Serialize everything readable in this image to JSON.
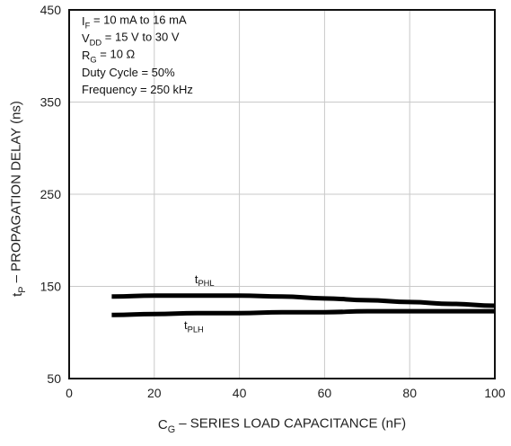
{
  "chart_data": {
    "type": "line",
    "xlabel": {
      "main": "C",
      "sub": "G",
      "rest": " – SERIES LOAD CAPACITANCE (nF)"
    },
    "ylabel": {
      "main": "t",
      "sub": "P",
      "rest": " – PROPAGATION DELAY (ns)"
    },
    "xlim": [
      0,
      100
    ],
    "ylim": [
      50,
      450
    ],
    "x_ticks": [
      0,
      20,
      40,
      60,
      80,
      100
    ],
    "y_ticks": [
      50,
      150,
      250,
      350,
      450
    ],
    "grid": true,
    "series": [
      {
        "name": {
          "main": "t",
          "sub": "PHL"
        },
        "x": [
          10,
          20,
          30,
          40,
          50,
          60,
          70,
          80,
          90,
          100
        ],
        "y": [
          139,
          140,
          140,
          140,
          139,
          137,
          135,
          133,
          131,
          129
        ]
      },
      {
        "name": {
          "main": "t",
          "sub": "PLH"
        },
        "x": [
          10,
          20,
          30,
          40,
          50,
          60,
          70,
          80,
          90,
          100
        ],
        "y": [
          119,
          120,
          121,
          121,
          122,
          122,
          123,
          123,
          123,
          123
        ]
      }
    ],
    "conditions": [
      {
        "main": "I",
        "sub": "F",
        "rest": " = 10 mA to 16 mA"
      },
      {
        "main": "V",
        "sub": "DD",
        "rest": " = 15 V to 30 V"
      },
      {
        "main": "R",
        "sub": "G",
        "rest": " = 10 Ω"
      },
      {
        "main": "Duty Cycle = 50%",
        "sub": "",
        "rest": ""
      },
      {
        "main": "Frequency = 250 kHz",
        "sub": "",
        "rest": ""
      }
    ]
  }
}
